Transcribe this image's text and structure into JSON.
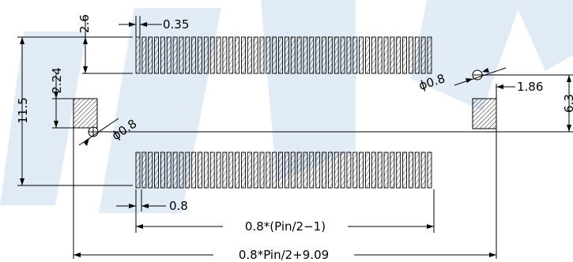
{
  "dimensions": {
    "pad_length": "2.6",
    "pad_width": "0.35",
    "row_offset": "2.24",
    "overall_height": "11.5",
    "hole_diameter_right": "ϕ0.8",
    "hole_offset": "1.86",
    "hole_span": "6.3",
    "hole_diameter_left": "ϕ0.8",
    "pitch": "0.8",
    "row_length": "0.8*(Pin/2−1)",
    "overall_length": "0.8*Pin/2+9.09"
  },
  "colors": {
    "line": "#000000",
    "watermark": "#c9dcee"
  }
}
